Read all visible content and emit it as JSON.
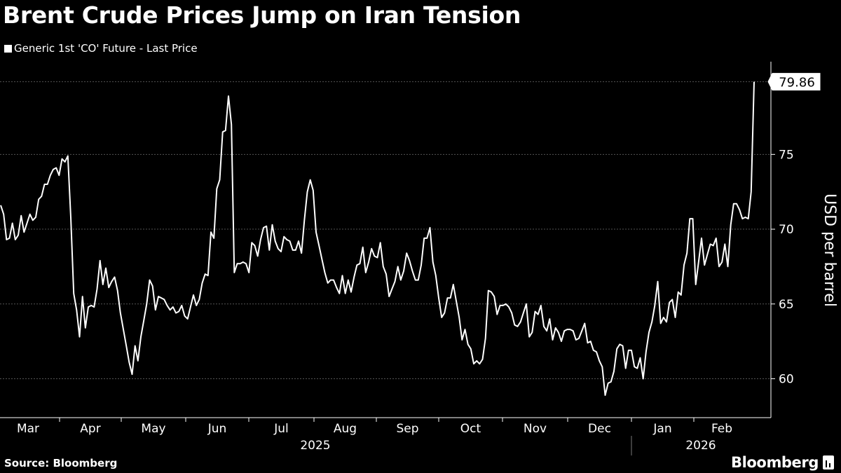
{
  "title": "Brent Crude Prices Jump on Iran Tension",
  "legend": {
    "label": "Generic 1st 'CO' Future - Last Price",
    "color": "#ffffff"
  },
  "source": "Source: Bloomberg",
  "brand": "Bloomberg",
  "colors": {
    "background": "#000000",
    "line": "#ffffff",
    "grid": "#555555",
    "axis": "#ffffff"
  },
  "chart_data": {
    "type": "line",
    "title": "Brent Crude Prices Jump on Iran Tension",
    "xlabel": "",
    "ylabel": "USD per barrel",
    "y_axis_side": "right",
    "ylim": [
      57.4,
      81.2
    ],
    "yticks": [
      60,
      65,
      70,
      75
    ],
    "grid": "horizontal dotted",
    "last_value_label": "79.86",
    "x_month_labels": [
      "Mar",
      "Apr",
      "May",
      "Jun",
      "Jul",
      "Aug",
      "Sep",
      "Oct",
      "Nov",
      "Dec",
      "Jan",
      "Feb"
    ],
    "x_year_labels": [
      "2025",
      "2026"
    ],
    "series": [
      {
        "name": "Generic 1st 'CO' Future - Last Price",
        "values": [
          71.6,
          71.0,
          69.3,
          69.4,
          70.4,
          69.3,
          69.6,
          70.9,
          69.8,
          70.4,
          71.0,
          70.6,
          70.8,
          72.0,
          72.2,
          73.0,
          73.0,
          73.6,
          74.0,
          74.1,
          73.6,
          74.7,
          74.5,
          74.9,
          70.8,
          65.7,
          64.6,
          62.8,
          65.5,
          63.4,
          64.8,
          64.9,
          64.8,
          66.0,
          67.9,
          66.3,
          67.4,
          66.1,
          66.5,
          66.8,
          65.9,
          64.4,
          63.3,
          62.2,
          61.1,
          60.3,
          62.2,
          61.2,
          62.8,
          63.9,
          65.0,
          66.6,
          66.2,
          64.6,
          65.5,
          65.4,
          65.3,
          64.9,
          64.6,
          64.8,
          64.4,
          64.5,
          64.9,
          64.2,
          64.0,
          64.8,
          65.6,
          64.9,
          65.3,
          66.4,
          67.0,
          66.9,
          69.8,
          69.4,
          72.7,
          73.3,
          76.5,
          76.6,
          78.9,
          77.0,
          67.1,
          67.7,
          67.7,
          67.8,
          67.7,
          67.1,
          69.1,
          68.9,
          68.2,
          69.3,
          70.1,
          70.2,
          68.6,
          70.3,
          69.2,
          68.7,
          68.5,
          69.5,
          69.3,
          69.2,
          68.6,
          68.6,
          69.2,
          68.4,
          70.6,
          72.5,
          73.3,
          72.6,
          69.8,
          68.9,
          68.0,
          67.1,
          66.4,
          66.6,
          66.6,
          66.1,
          65.7,
          66.9,
          65.7,
          66.6,
          65.8,
          66.8,
          67.6,
          67.7,
          68.8,
          67.1,
          67.8,
          68.7,
          68.2,
          68.1,
          69.1,
          67.5,
          67.0,
          65.5,
          66.0,
          66.5,
          67.5,
          66.6,
          67.2,
          68.4,
          67.9,
          67.2,
          66.6,
          66.6,
          67.6,
          69.4,
          69.4,
          70.1,
          67.8,
          66.9,
          65.4,
          64.1,
          64.4,
          65.4,
          65.4,
          66.3,
          65.2,
          64.1,
          62.6,
          63.3,
          62.3,
          62.0,
          61.0,
          61.2,
          61.0,
          61.3,
          62.7,
          65.9,
          65.8,
          65.5,
          64.3,
          64.9,
          64.9,
          65.0,
          64.8,
          64.4,
          63.6,
          63.5,
          63.8,
          64.4,
          65.0,
          62.8,
          63.1,
          64.5,
          64.3,
          64.9,
          63.5,
          63.2,
          64.0,
          62.6,
          63.4,
          63.1,
          62.5,
          63.2,
          63.3,
          63.3,
          63.2,
          62.6,
          62.7,
          63.2,
          63.7,
          62.4,
          62.5,
          61.9,
          61.8,
          61.2,
          60.8,
          58.9,
          59.7,
          59.8,
          60.5,
          62.0,
          62.3,
          62.2,
          60.7,
          61.9,
          61.9,
          60.8,
          60.7,
          61.4,
          60.0,
          61.8,
          63.1,
          63.8,
          64.9,
          66.5,
          63.7,
          64.1,
          63.8,
          65.1,
          65.3,
          64.1,
          65.8,
          65.6,
          67.6,
          68.4,
          70.7,
          70.7,
          66.3,
          67.8,
          69.4,
          67.6,
          68.3,
          69.0,
          68.9,
          69.4,
          67.5,
          67.8,
          69.0,
          67.5,
          70.3,
          71.7,
          71.7,
          71.3,
          70.7,
          70.8,
          70.7,
          72.5,
          79.86
        ]
      }
    ]
  }
}
